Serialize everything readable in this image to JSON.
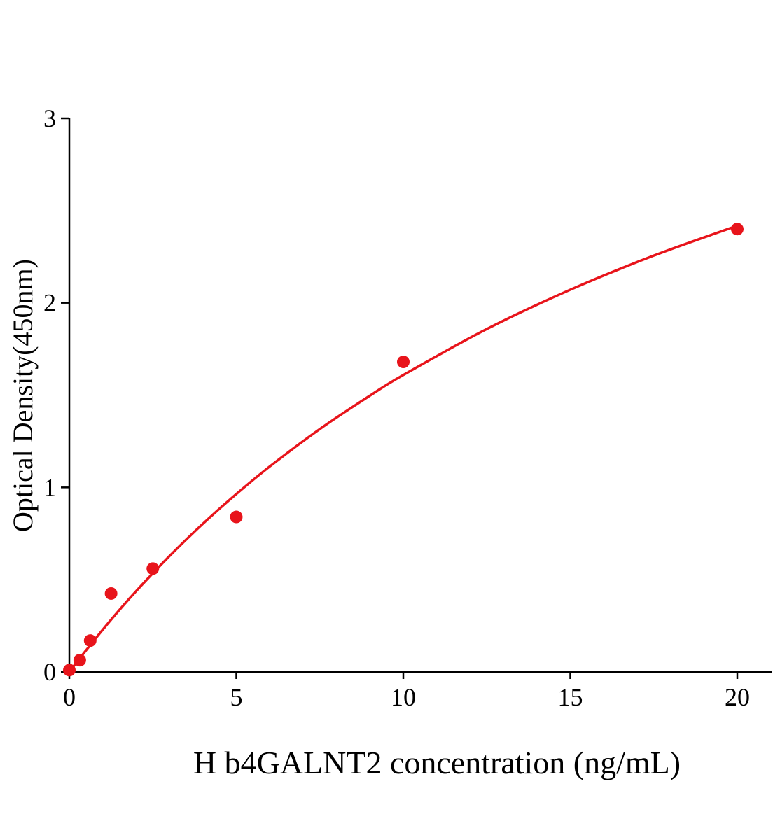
{
  "chart_data": {
    "type": "scatter",
    "title": "",
    "xlabel": "H b4GALNT2 concentration (ng/mL)",
    "ylabel": "Optical Density(450nm)",
    "xlim": [
      0,
      21
    ],
    "ylim": [
      0,
      3
    ],
    "xticks": [
      0,
      5,
      10,
      15,
      20
    ],
    "yticks": [
      0,
      1,
      2,
      3
    ],
    "xtick_labels": [
      "0",
      "5",
      "10",
      "15",
      "20"
    ],
    "ytick_labels": [
      "0",
      "1",
      "2",
      "3"
    ],
    "grid": false,
    "color": "#e8141b",
    "points": {
      "x": [
        0,
        0.3125,
        0.625,
        1.25,
        2.5,
        5,
        10,
        20
      ],
      "y": [
        0.01,
        0.064,
        0.17,
        0.425,
        0.56,
        0.84,
        1.68,
        2.4
      ]
    },
    "fit_curve": {
      "x": [
        0,
        0.25,
        0.5,
        1,
        1.5,
        2,
        3,
        4,
        5,
        6,
        7.5,
        9,
        10,
        12.5,
        15,
        17.5,
        20
      ],
      "y": [
        0,
        0.06,
        0.117,
        0.229,
        0.336,
        0.438,
        0.628,
        0.803,
        0.964,
        1.113,
        1.316,
        1.497,
        1.609,
        1.858,
        2.071,
        2.256,
        2.418
      ]
    }
  }
}
